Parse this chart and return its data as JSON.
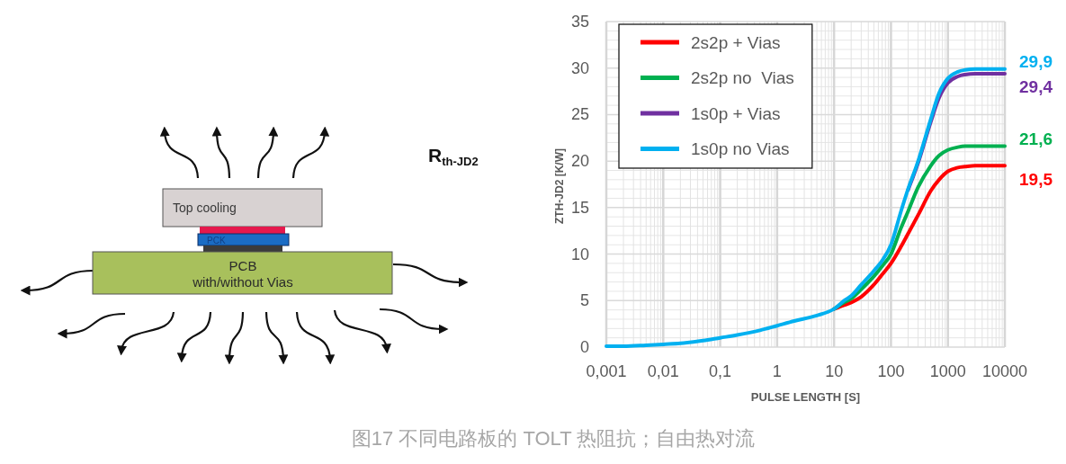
{
  "chart_data": [
    {
      "type": "other",
      "annotations": [
        "Top cooling",
        "PCK",
        "PCB",
        "with/without Vias",
        "R$_{th-JD2}$"
      ]
    },
    {
      "type": "line",
      "xlabel": "PULSE LENGTH [S]",
      "ylabel": "ZTH-JD2 [K/W]",
      "log": "x",
      "grid": true,
      "legend": "top left",
      "xlim": [
        0.001,
        10000
      ],
      "ylim": [
        0,
        35
      ],
      "xticks": [
        {
          "value": 0.001,
          "label": "0,001"
        },
        {
          "value": 0.01,
          "label": "0,01"
        },
        {
          "value": 0.1,
          "label": "0,1"
        },
        1,
        10,
        100,
        1000,
        10000
      ],
      "yticks": [
        0,
        5,
        10,
        15,
        20,
        25,
        30,
        35
      ],
      "x": [
        0.001,
        0.002,
        0.005,
        0.01,
        0.02,
        0.05,
        0.1,
        0.2,
        0.5,
        1,
        2,
        5,
        10,
        15,
        20,
        30,
        50,
        70,
        100,
        150,
        200,
        300,
        500,
        700,
        1000,
        1500,
        2000,
        3000,
        5000,
        10000
      ],
      "series": [
        {
          "name": "2s2p + Vias",
          "color": "#ff0000",
          "values": [
            null,
            null,
            null,
            null,
            null,
            null,
            null,
            null,
            null,
            null,
            null,
            null,
            4.1,
            4.5,
            4.8,
            5.4,
            6.7,
            7.8,
            9.0,
            10.8,
            12.2,
            14.2,
            16.8,
            18.0,
            18.9,
            19.3,
            19.4,
            19.5,
            19.5,
            19.5
          ],
          "value_labels": [
            null,
            null,
            null,
            null,
            null,
            null,
            null,
            null,
            null,
            null,
            null,
            null,
            null,
            null,
            null,
            null,
            null,
            null,
            null,
            null,
            null,
            null,
            null,
            null,
            null,
            null,
            null,
            null,
            null,
            "19,5"
          ]
        },
        {
          "name": "2s2p no  Vias",
          "color": "#00b050",
          "values": [
            null,
            null,
            null,
            null,
            null,
            null,
            null,
            null,
            null,
            null,
            null,
            null,
            4.1,
            4.8,
            5.2,
            6.2,
            7.6,
            8.7,
            10.0,
            12.8,
            14.6,
            17.2,
            19.5,
            20.6,
            21.2,
            21.5,
            21.6,
            21.6,
            21.6,
            21.6
          ],
          "value_labels": [
            null,
            null,
            null,
            null,
            null,
            null,
            null,
            null,
            null,
            null,
            null,
            null,
            null,
            null,
            null,
            null,
            null,
            null,
            null,
            null,
            null,
            null,
            null,
            null,
            null,
            null,
            null,
            null,
            null,
            "21,6"
          ]
        },
        {
          "name": "1s0p + Vias",
          "color": "#7030a0",
          "values": [
            null,
            null,
            null,
            null,
            null,
            null,
            null,
            null,
            null,
            null,
            null,
            null,
            null,
            null,
            null,
            null,
            null,
            null,
            null,
            null,
            16.9,
            19.8,
            24.2,
            26.8,
            28.4,
            29.1,
            29.3,
            29.4,
            29.4,
            29.4
          ],
          "value_labels": [
            null,
            null,
            null,
            null,
            null,
            null,
            null,
            null,
            null,
            null,
            null,
            null,
            null,
            null,
            null,
            null,
            null,
            null,
            null,
            null,
            null,
            null,
            null,
            null,
            null,
            null,
            null,
            null,
            null,
            "29,4"
          ]
        },
        {
          "name": "1s0p no Vias",
          "color": "#00b0f0",
          "values": [
            0.1,
            0.1,
            0.2,
            0.3,
            0.4,
            0.7,
            1.0,
            1.3,
            1.8,
            2.3,
            2.8,
            3.4,
            4.1,
            5.0,
            5.5,
            6.7,
            8.2,
            9.3,
            11.0,
            14.6,
            17.0,
            20.0,
            24.5,
            27.3,
            28.9,
            29.6,
            29.8,
            29.9,
            29.9,
            29.9
          ],
          "value_labels": [
            null,
            null,
            null,
            null,
            null,
            null,
            null,
            null,
            null,
            null,
            null,
            null,
            null,
            null,
            null,
            null,
            null,
            null,
            null,
            null,
            null,
            null,
            null,
            null,
            null,
            null,
            null,
            null,
            null,
            "29,9"
          ]
        }
      ],
      "annotations": [
        "图17 不同电路板的 TOLT 热阻抗；自由热对流"
      ]
    }
  ]
}
